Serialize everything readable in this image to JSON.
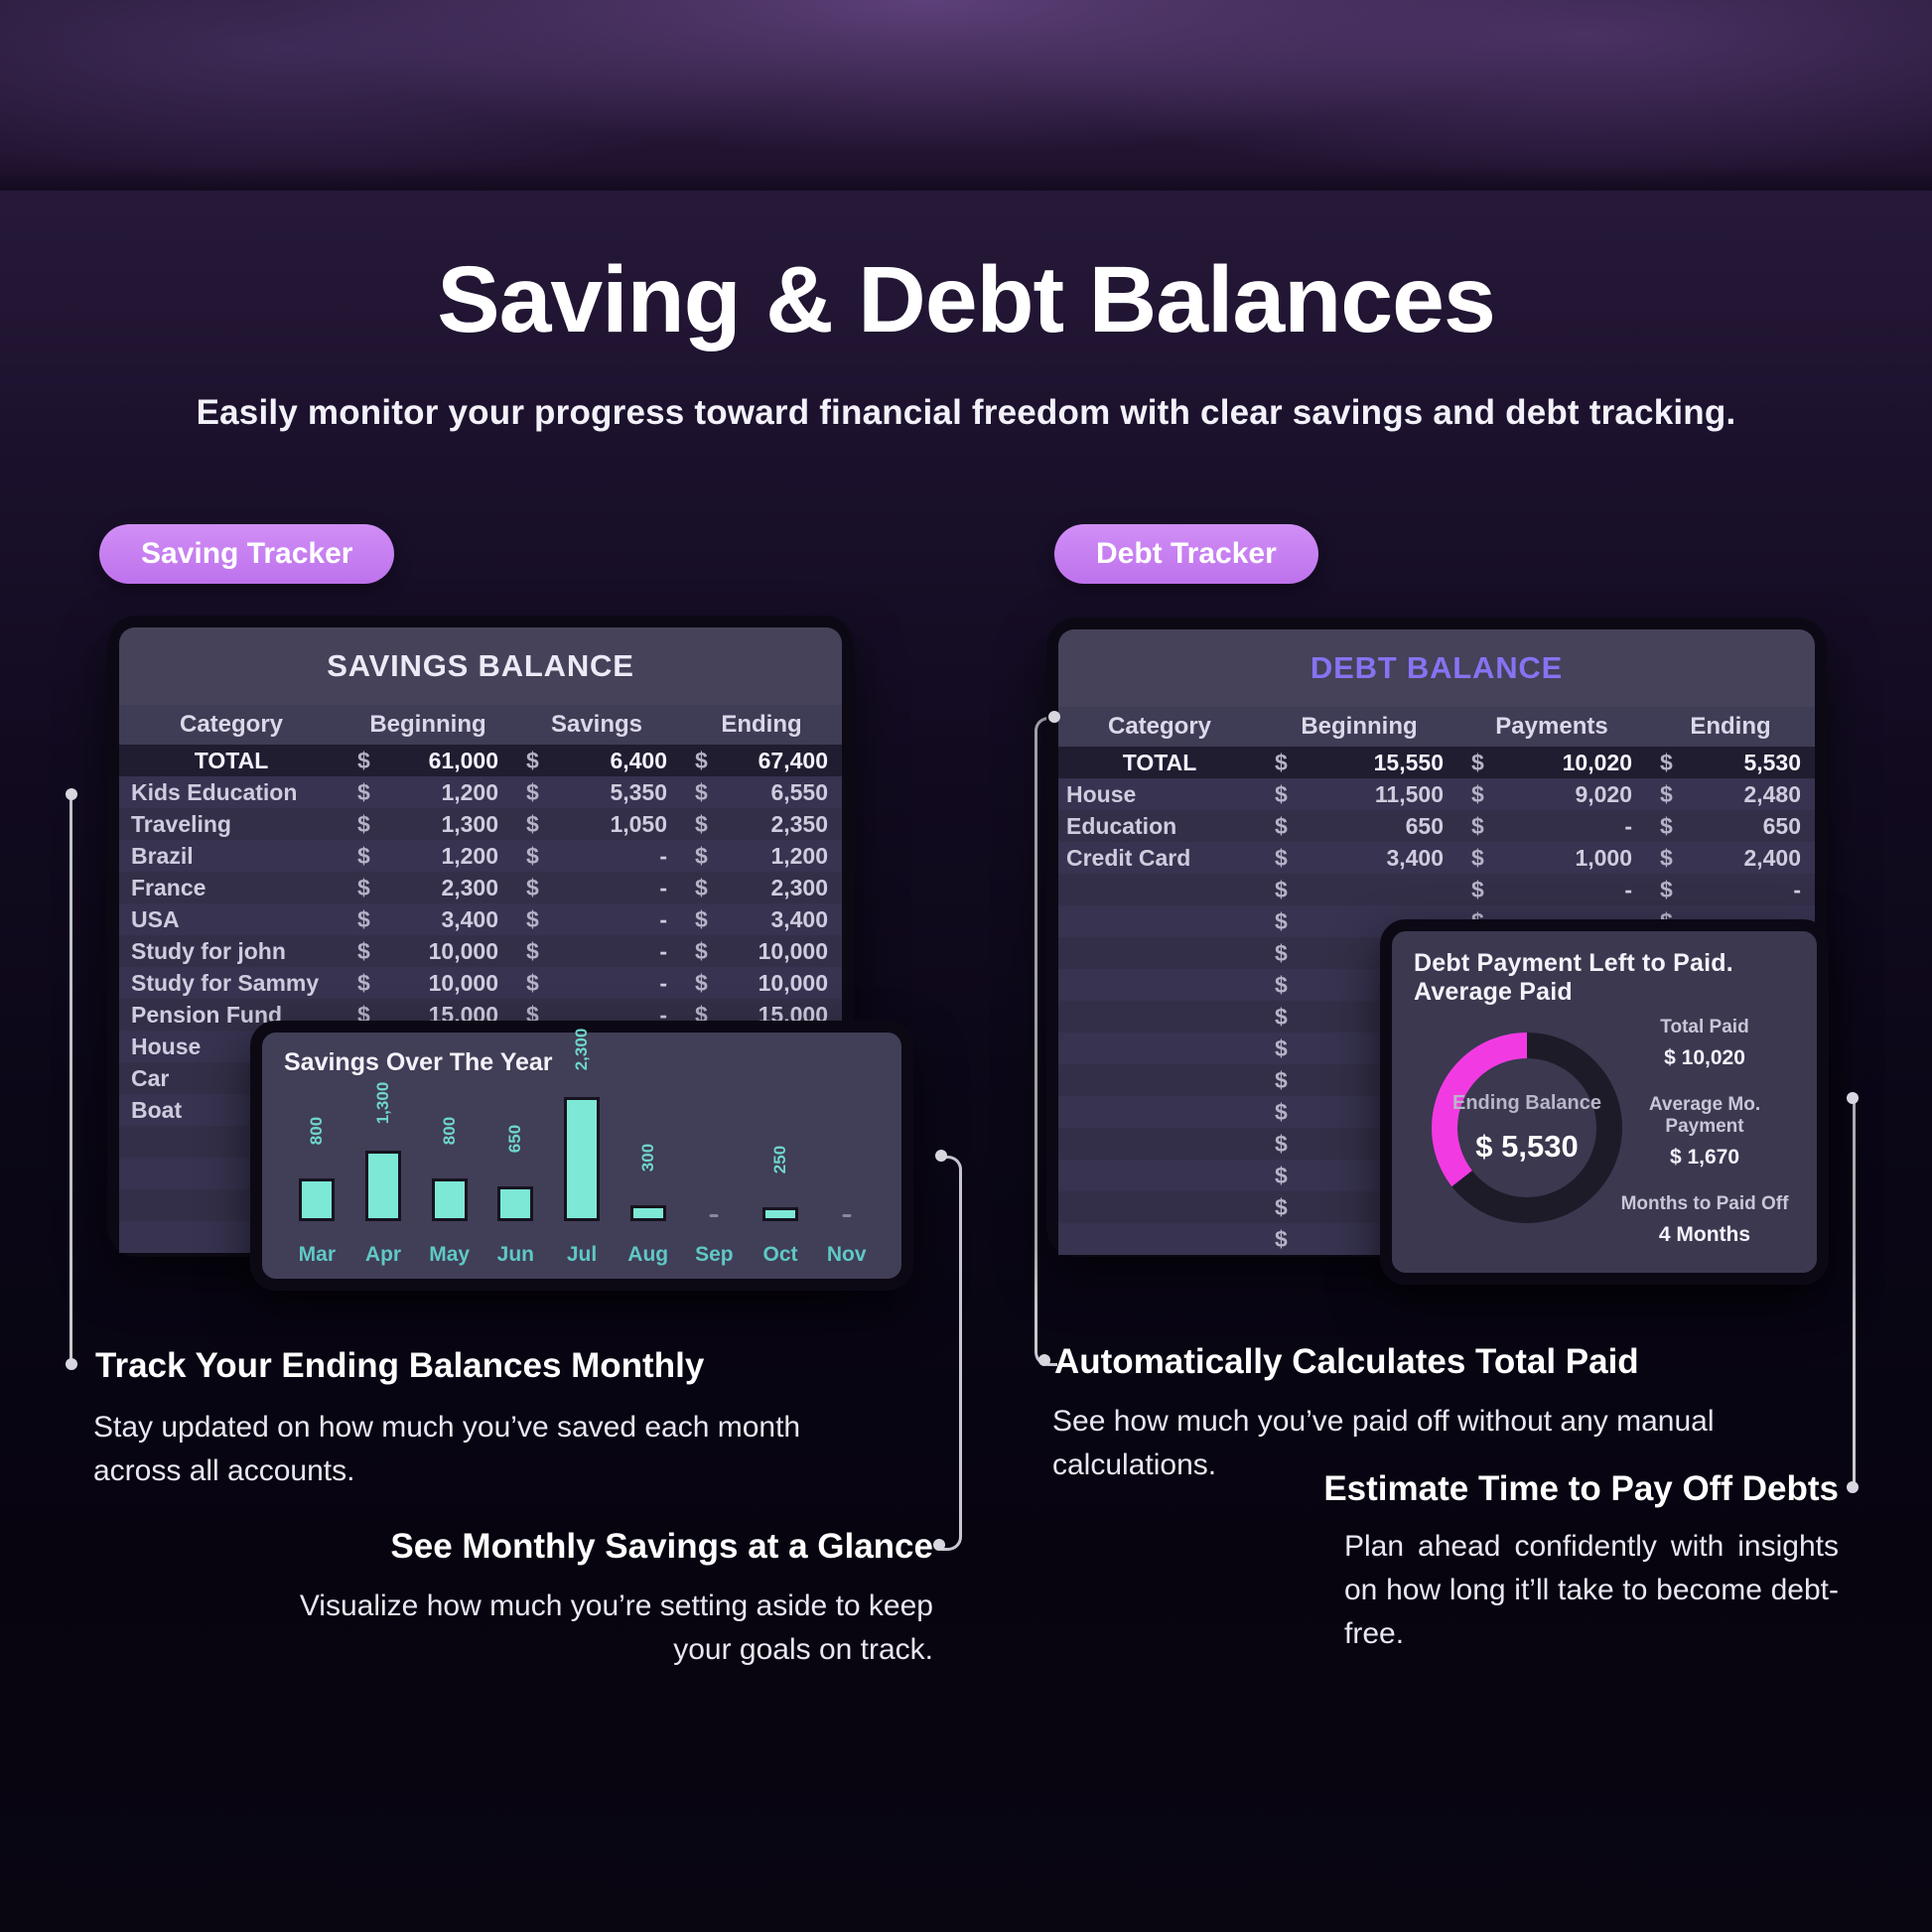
{
  "page": {
    "title": "Saving & Debt Balances",
    "subtitle": "Easily monitor your progress toward financial freedom with clear savings and debt tracking."
  },
  "badges": {
    "saving": "Saving Tracker",
    "debt": "Debt Tracker"
  },
  "colors": {
    "pill": "#c57df0",
    "debt_title": "#8673f2",
    "bar": "#7de8d6",
    "donut_pink": "#f23ae3",
    "donut_dark": "#1e1b29"
  },
  "savings_table": {
    "title": "SAVINGS BALANCE",
    "columns": [
      "Category",
      "Beginning",
      "Savings",
      "Ending"
    ],
    "rows": [
      [
        "TOTAL",
        "61,000",
        "6,400",
        "67,400"
      ],
      [
        "Kids Education",
        "1,200",
        "5,350",
        "6,550"
      ],
      [
        "Traveling",
        "1,300",
        "1,050",
        "2,350"
      ],
      [
        "Brazil",
        "1,200",
        "-",
        "1,200"
      ],
      [
        "France",
        "2,300",
        "-",
        "2,300"
      ],
      [
        "USA",
        "3,400",
        "-",
        "3,400"
      ],
      [
        "Study for john",
        "10,000",
        "-",
        "10,000"
      ],
      [
        "Study for Sammy",
        "10,000",
        "-",
        "10,000"
      ],
      [
        "Pension Fund",
        "15,000",
        "-",
        "15,000"
      ],
      [
        "House",
        null,
        null,
        null
      ],
      [
        "Car",
        null,
        null,
        null
      ],
      [
        "Boat",
        null,
        null,
        null
      ],
      [
        "",
        null,
        null,
        null
      ],
      [
        "",
        null,
        null,
        null
      ],
      [
        "",
        null,
        null,
        null
      ],
      [
        "",
        null,
        null,
        null
      ]
    ]
  },
  "debt_table": {
    "title": "DEBT BALANCE",
    "columns": [
      "Category",
      "Beginning",
      "Payments",
      "Ending"
    ],
    "rows": [
      [
        "TOTAL",
        "15,550",
        "10,020",
        "5,530"
      ],
      [
        "House",
        "11,500",
        "9,020",
        "2,480"
      ],
      [
        "Education",
        "650",
        "-",
        "650"
      ],
      [
        "Credit Card",
        "3,400",
        "1,000",
        "2,400"
      ],
      [
        "",
        "",
        "-",
        "-"
      ],
      [
        "",
        "",
        "-",
        "-"
      ],
      [
        "",
        "",
        "-",
        "-"
      ],
      [
        "",
        "",
        "-",
        "-"
      ],
      [
        "",
        "",
        "-",
        "-"
      ],
      [
        "",
        "",
        "-",
        "-"
      ],
      [
        "",
        "",
        "-",
        "-"
      ],
      [
        "",
        "",
        "-",
        "-"
      ],
      [
        "",
        "",
        "-",
        "-"
      ],
      [
        "",
        "",
        "-",
        "-"
      ],
      [
        "",
        "",
        "-",
        "-"
      ],
      [
        "",
        "",
        "-",
        "-"
      ]
    ]
  },
  "chart_data": [
    {
      "type": "bar",
      "title": "Savings Over The Year",
      "categories": [
        "Mar",
        "Apr",
        "May",
        "Jun",
        "Jul",
        "Aug",
        "Sep",
        "Oct",
        "Nov"
      ],
      "values": [
        800,
        1300,
        800,
        650,
        2300,
        300,
        null,
        250,
        null
      ],
      "labels": [
        "800",
        "1,300",
        "800",
        "650",
        "2,300",
        "300",
        null,
        "250",
        null
      ],
      "xlabel": "",
      "ylabel": "",
      "ylim": [
        0,
        2300
      ],
      "grid": false,
      "legend": "none",
      "bar_color": "#7de8d6"
    },
    {
      "type": "pie",
      "title": "Debt  Payment Left to Paid. Average Paid",
      "slices": [
        {
          "label": "Ending Balance",
          "value": 5530,
          "color": "#f23ae3"
        },
        {
          "label": "Total Paid",
          "value": 10020,
          "color": "#1e1b29"
        }
      ],
      "center_label": "Ending Balance",
      "center_value": "$ 5,530",
      "stats": [
        {
          "label": "Total Paid",
          "value": "$ 10,020"
        },
        {
          "label": "Average Mo. Payment",
          "value": "$ 1,670"
        },
        {
          "label": "Months to Paid Off",
          "value": "4 Months"
        }
      ],
      "legend": "none"
    }
  ],
  "donut_card": {
    "title": "Debt  Payment Left to Paid. Average Paid",
    "center_label": "Ending Balance",
    "center_value": "$ 5,530",
    "stats": [
      {
        "label": "Total Paid",
        "value": "$ 10,020"
      },
      {
        "label": "Average Mo. Payment",
        "value": "$ 1,670"
      },
      {
        "label": "Months to Paid Off",
        "value": "4 Months"
      }
    ]
  },
  "chart_card": {
    "title": "Savings Over The Year"
  },
  "notes": {
    "track": {
      "heading": "Track Your Ending Balances Monthly",
      "body": "Stay updated on how much you’ve saved each month across all accounts."
    },
    "glance": {
      "heading": "See Monthly Savings at a Glance",
      "body": "Visualize how much you’re setting aside to keep your goals on track."
    },
    "auto": {
      "heading": "Automatically Calculates Total Paid",
      "body": "See how much you’ve paid off without any manual calculations."
    },
    "estimate": {
      "heading": "Estimate Time to Pay Off Debts",
      "body": "Plan ahead confidently with insights on how long it’ll take to become debt-free."
    }
  }
}
